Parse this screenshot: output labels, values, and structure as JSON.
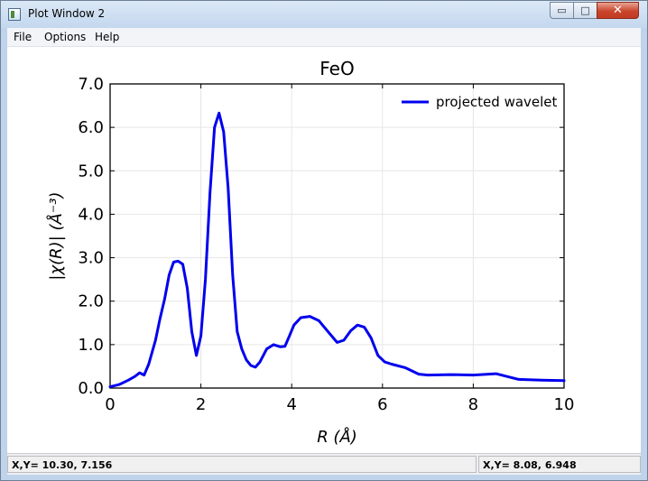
{
  "window": {
    "title": "Plot Window 2",
    "controls": {
      "minimize": "▭",
      "maximize": "□",
      "close": "✕"
    }
  },
  "menu": {
    "items": [
      "File",
      "Options",
      "Help"
    ]
  },
  "status": {
    "left": "X,Y= 10.30, 7.156",
    "right": "X,Y= 8.08, 6.948"
  },
  "chart_data": {
    "type": "line",
    "title": "FeO",
    "xlabel": "R (Å)",
    "ylabel": "|χ(R)| (Å⁻³)",
    "xlim": [
      0,
      10
    ],
    "ylim": [
      0,
      7
    ],
    "xticks": [
      "0",
      "2",
      "4",
      "6",
      "8",
      "10"
    ],
    "yticks": [
      "0.0",
      "1.0",
      "2.0",
      "3.0",
      "4.0",
      "5.0",
      "6.0",
      "7.0"
    ],
    "grid": true,
    "legend_position": "top-right",
    "series": [
      {
        "name": "projected wavelet",
        "color": "#0000ee",
        "x": [
          0.0,
          0.2,
          0.4,
          0.55,
          0.65,
          0.75,
          0.85,
          1.0,
          1.1,
          1.2,
          1.3,
          1.4,
          1.5,
          1.6,
          1.7,
          1.8,
          1.9,
          2.0,
          2.1,
          2.2,
          2.3,
          2.4,
          2.5,
          2.6,
          2.7,
          2.8,
          2.9,
          3.0,
          3.1,
          3.2,
          3.3,
          3.45,
          3.6,
          3.75,
          3.85,
          3.95,
          4.05,
          4.2,
          4.4,
          4.6,
          4.8,
          5.0,
          5.15,
          5.3,
          5.45,
          5.6,
          5.75,
          5.9,
          6.05,
          6.2,
          6.5,
          6.8,
          7.0,
          7.5,
          8.0,
          8.5,
          9.0,
          9.5,
          10.0
        ],
        "y": [
          0.03,
          0.08,
          0.18,
          0.27,
          0.35,
          0.3,
          0.55,
          1.1,
          1.6,
          2.05,
          2.6,
          2.9,
          2.92,
          2.85,
          2.3,
          1.3,
          0.75,
          1.2,
          2.5,
          4.5,
          6.0,
          6.33,
          5.9,
          4.6,
          2.6,
          1.3,
          0.9,
          0.65,
          0.52,
          0.48,
          0.6,
          0.9,
          1.0,
          0.95,
          0.96,
          1.2,
          1.45,
          1.62,
          1.65,
          1.55,
          1.3,
          1.05,
          1.1,
          1.32,
          1.45,
          1.4,
          1.15,
          0.75,
          0.6,
          0.55,
          0.47,
          0.32,
          0.3,
          0.31,
          0.3,
          0.33,
          0.2,
          0.18,
          0.17
        ]
      }
    ]
  }
}
